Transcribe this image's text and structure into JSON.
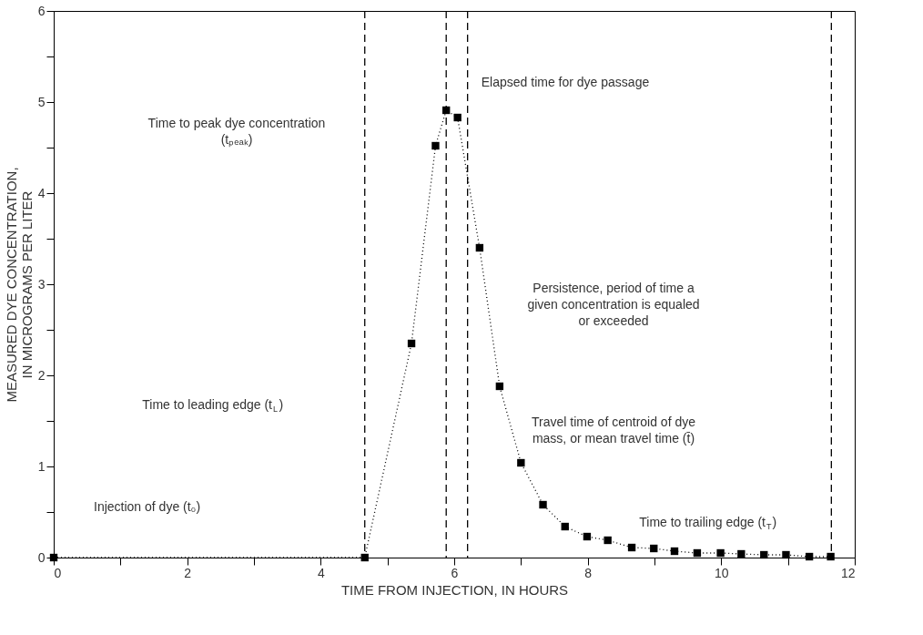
{
  "chart_data": {
    "type": "line",
    "xlabel": "TIME FROM INJECTION, IN HOURS",
    "ylabel": "MEASURED DYE CONCENTRATION,\nIN MICROGRAMS PER LITER",
    "x": [
      0,
      4.66,
      5.36,
      5.72,
      5.88,
      6.05,
      6.38,
      6.68,
      7.0,
      7.33,
      7.66,
      7.99,
      8.3,
      8.66,
      8.99,
      9.3,
      9.64,
      9.99,
      10.3,
      10.64,
      10.97,
      11.32,
      11.64
    ],
    "series": [
      {
        "color": "#000000",
        "values": [
          0,
          0,
          2.35,
          4.52,
          4.91,
          4.83,
          3.4,
          1.88,
          1.04,
          0.58,
          0.34,
          0.23,
          0.19,
          0.11,
          0.1,
          0.07,
          0.05,
          0.05,
          0.04,
          0.03,
          0.03,
          0.01,
          0.01
        ]
      }
    ],
    "marker": "square",
    "line_style": "dotted",
    "xlim": [
      0,
      12
    ],
    "ylim": [
      0,
      6
    ],
    "xticks": [
      0,
      {
        "value": 1,
        "label": null
      },
      2,
      {
        "value": 3,
        "label": null
      },
      4,
      {
        "value": 5,
        "label": null
      },
      6,
      {
        "value": 7,
        "label": null
      },
      8,
      {
        "value": 9,
        "label": null
      },
      10,
      {
        "value": 11,
        "label": null
      },
      12
    ],
    "yticks": [
      0,
      {
        "value": 0.5,
        "label": null
      },
      1,
      {
        "value": 1.5,
        "label": null
      },
      2,
      {
        "value": 2.5,
        "label": null
      },
      3,
      {
        "value": 3.5,
        "label": null
      },
      4,
      {
        "value": 4.5,
        "label": null
      },
      5,
      {
        "value": 5.5,
        "label": null
      },
      6
    ],
    "grid": false,
    "ref_lines": [
      {
        "axis": "x",
        "value": 4.66,
        "line_style": "dashed",
        "color": "#000000"
      },
      {
        "axis": "x",
        "value": 5.88,
        "line_style": "dashed",
        "color": "#000000"
      },
      {
        "axis": "x",
        "value": 6.2,
        "line_style": "dashed",
        "color": "#000000"
      },
      {
        "axis": "x",
        "value": 11.65,
        "line_style": "dashed",
        "color": "#000000"
      }
    ],
    "annotations": [
      "Injection of dye (t₀)",
      "Time to leading edge (t$_{L}$)",
      "Time to peak dye concentration\n(tₚₑₐₖ)",
      "Elapsed time for dye passage",
      "Persistence, period of time a\ngiven concentration is equaled\nor exceeded",
      "Travel time of centroid of dye\nmass, or mean travel time (t̄)",
      "Time to trailing edge (t$_{T}$)"
    ]
  }
}
